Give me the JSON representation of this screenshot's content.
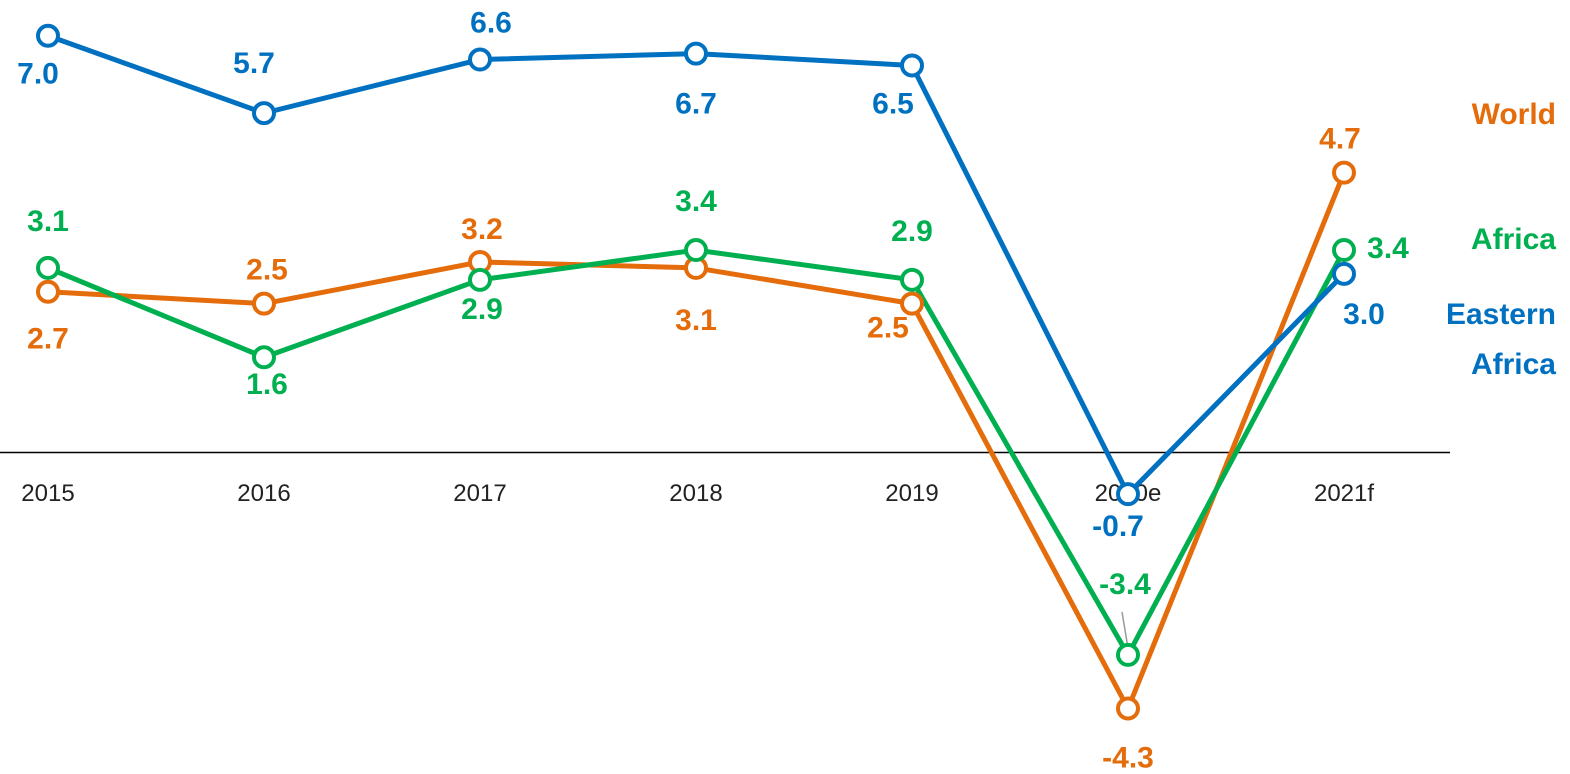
{
  "chart_data": {
    "type": "line",
    "categories": [
      "2015",
      "2016",
      "2017",
      "2018",
      "2019",
      "2020e",
      "2021f"
    ],
    "series": [
      {
        "name": "World",
        "color": "#e46c0a",
        "values": [
          2.7,
          2.5,
          3.2,
          3.1,
          2.5,
          -4.3,
          4.7
        ],
        "value_labels": [
          "2.7",
          "2.5",
          "3.2",
          "3.1",
          "2.5",
          "-4.3",
          "4.7"
        ]
      },
      {
        "name": "Africa",
        "color": "#00b050",
        "values": [
          3.1,
          1.6,
          2.9,
          3.4,
          2.9,
          -3.4,
          3.4
        ],
        "value_labels": [
          "3.1",
          "1.6",
          "2.9",
          "3.4",
          "2.9",
          "-3.4",
          "3.4"
        ]
      },
      {
        "name": "Eastern Africa",
        "color": "#0070c0",
        "values": [
          7.0,
          5.7,
          6.6,
          6.7,
          6.5,
          -0.7,
          3.0
        ],
        "value_labels": [
          "7.0",
          "5.7",
          "6.6",
          "6.7",
          "6.5",
          "-0.7",
          "3.0"
        ]
      }
    ],
    "ylim": [
      -5.4,
      7.6
    ]
  }
}
